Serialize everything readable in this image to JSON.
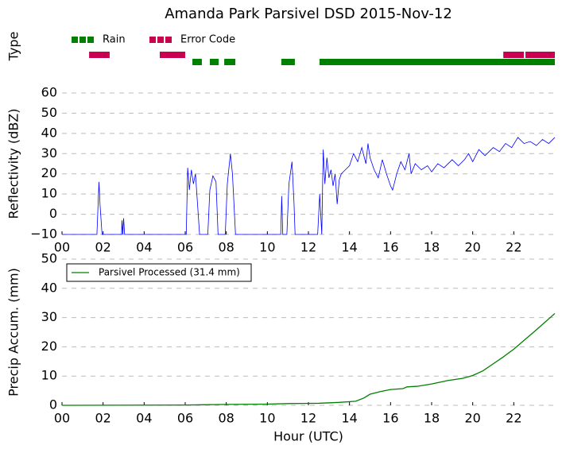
{
  "chart_data": [
    {
      "type": "timeline",
      "title": "Amanda Park Parsivel DSD 2015-Nov-12",
      "ylabel": "Type",
      "xlim": [
        0,
        24
      ],
      "series": [
        {
          "name": "Rain",
          "color": "#008000",
          "segments": [
            [
              6.35,
              6.81
            ],
            [
              7.2,
              7.63
            ],
            [
              7.9,
              8.44
            ],
            [
              10.68,
              11.34
            ],
            [
              12.54,
              24
            ]
          ]
        },
        {
          "name": "Error Code",
          "color": "#c8004f",
          "segments": [
            [
              1.32,
              2.32
            ],
            [
              4.76,
              6.0
            ],
            [
              21.49,
              22.49
            ],
            [
              22.57,
              24
            ]
          ]
        }
      ]
    },
    {
      "type": "line",
      "ylabel": "Reflectivity (dBZ)",
      "xlim": [
        0,
        24
      ],
      "ylim": [
        -10,
        60
      ],
      "xticks": [
        {
          "value": 0,
          "label": "00"
        },
        {
          "value": 2,
          "label": "02"
        },
        {
          "value": 4,
          "label": "04"
        },
        {
          "value": 6,
          "label": "06"
        },
        {
          "value": 8,
          "label": "08"
        },
        {
          "value": 10,
          "label": "10"
        },
        {
          "value": 12,
          "label": "12"
        },
        {
          "value": 14,
          "label": "14"
        },
        {
          "value": 16,
          "label": "16"
        },
        {
          "value": 18,
          "label": "18"
        },
        {
          "value": 20,
          "label": "20"
        },
        {
          "value": 22,
          "label": "22"
        }
      ],
      "yticks": [
        {
          "value": -10,
          "label": "−10"
        },
        0,
        10,
        20,
        30,
        40,
        50,
        60
      ],
      "grid": true,
      "series": [
        {
          "color": "#0000ff",
          "x": [
            0,
            1.7,
            1.8,
            1.85,
            1.95,
            2.9,
            2.92,
            2.96,
            3.0,
            3.05,
            6.05,
            6.12,
            6.2,
            6.3,
            6.4,
            6.5,
            6.6,
            6.7,
            7.1,
            7.2,
            7.35,
            7.5,
            7.6,
            7.95,
            8.05,
            8.2,
            8.3,
            8.45,
            10.65,
            10.7,
            10.75,
            10.95,
            11.05,
            11.2,
            11.3,
            11.35,
            12.45,
            12.55,
            12.65,
            12.72,
            12.8,
            12.9,
            13.0,
            13.1,
            13.2,
            13.3,
            13.4,
            13.5,
            13.6,
            13.8,
            14.0,
            14.2,
            14.4,
            14.6,
            14.8,
            14.9,
            15.0,
            15.2,
            15.4,
            15.6,
            15.8,
            16.0,
            16.1,
            16.3,
            16.5,
            16.7,
            16.9,
            17.0,
            17.2,
            17.5,
            17.8,
            18.0,
            18.3,
            18.6,
            19.0,
            19.3,
            19.6,
            19.8,
            20.0,
            20.3,
            20.6,
            21.0,
            21.3,
            21.6,
            21.9,
            22.2,
            22.5,
            22.8,
            23.1,
            23.4,
            23.7,
            24.0
          ],
          "values": [
            -10,
            -10,
            16,
            5,
            -10,
            -10,
            -3,
            -10,
            -2,
            -10,
            -10,
            23,
            12,
            22,
            15,
            20,
            5,
            -10,
            -10,
            12,
            19,
            16,
            -10,
            -10,
            15,
            30,
            20,
            -10,
            -10,
            9,
            -10,
            -10,
            15,
            26,
            5,
            -10,
            -10,
            10,
            -10,
            32,
            15,
            28,
            18,
            22,
            14,
            20,
            5,
            17,
            20,
            22,
            24,
            30,
            26,
            33,
            25,
            35,
            28,
            22,
            18,
            27,
            20,
            14,
            12,
            20,
            26,
            22,
            30,
            20,
            25,
            22,
            24,
            21,
            25,
            23,
            27,
            24,
            27,
            30,
            26,
            32,
            29,
            33,
            31,
            35,
            33,
            38,
            35,
            36,
            34,
            37,
            35,
            38
          ]
        }
      ]
    },
    {
      "type": "line",
      "xlabel": "Hour (UTC)",
      "ylabel": "Precip Accum. (mm)",
      "xlim": [
        0,
        24
      ],
      "ylim": [
        0,
        50
      ],
      "xticks": [
        {
          "value": 0,
          "label": "00"
        },
        {
          "value": 2,
          "label": "02"
        },
        {
          "value": 4,
          "label": "04"
        },
        {
          "value": 6,
          "label": "06"
        },
        {
          "value": 8,
          "label": "08"
        },
        {
          "value": 10,
          "label": "10"
        },
        {
          "value": 12,
          "label": "12"
        },
        {
          "value": 14,
          "label": "14"
        },
        {
          "value": 16,
          "label": "16"
        },
        {
          "value": 18,
          "label": "18"
        },
        {
          "value": 20,
          "label": "20"
        },
        {
          "value": 22,
          "label": "22"
        }
      ],
      "yticks": [
        0,
        10,
        20,
        30,
        40,
        50
      ],
      "grid": true,
      "legend": "upper left",
      "series": [
        {
          "name": "Parsivel Processed (31.4 mm)",
          "color": "#008000",
          "x": [
            0,
            6,
            8,
            10,
            11,
            12.5,
            13.5,
            14.3,
            14.7,
            15,
            15.5,
            16,
            16.6,
            16.8,
            17.3,
            18,
            18.8,
            19.5,
            20,
            20.5,
            21,
            21.5,
            22,
            22.5,
            23,
            23.5,
            24
          ],
          "values": [
            0,
            0.1,
            0.3,
            0.4,
            0.6,
            0.7,
            1.0,
            1.4,
            2.5,
            3.8,
            4.7,
            5.4,
            5.7,
            6.3,
            6.5,
            7.3,
            8.5,
            9.2,
            10.2,
            11.8,
            14.2,
            16.6,
            19.2,
            22.2,
            25.2,
            28.3,
            31.4
          ]
        }
      ]
    }
  ]
}
